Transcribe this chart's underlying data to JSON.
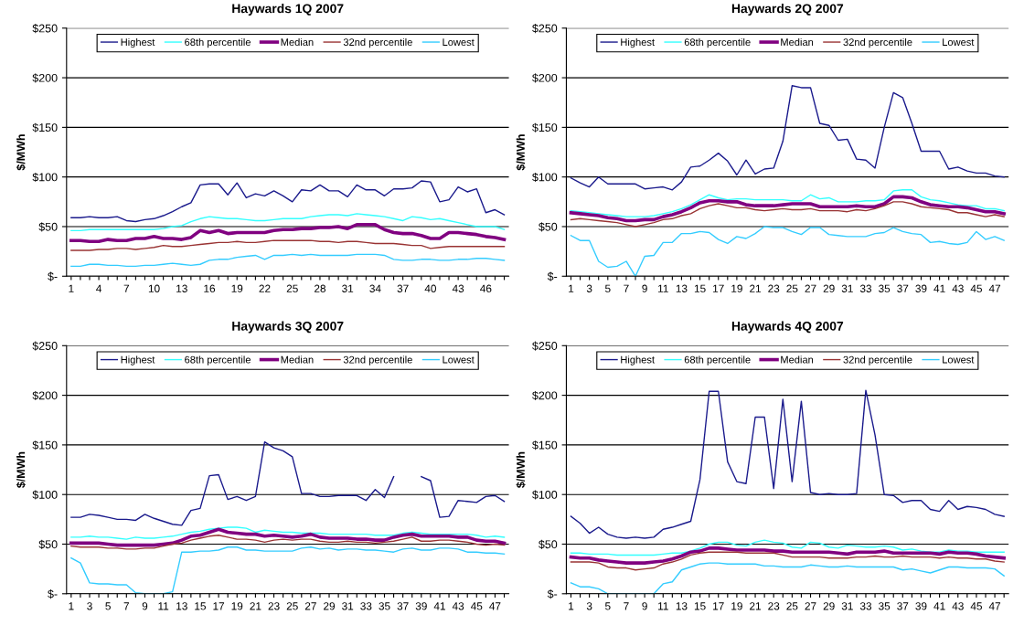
{
  "chart_data": [
    {
      "type": "line",
      "title": "Haywards 1Q 2007",
      "ylabel": "$/MWh",
      "categories": [
        "1",
        null,
        null,
        "4",
        null,
        null,
        "7",
        null,
        null,
        "10",
        null,
        null,
        "13",
        null,
        null,
        "16",
        null,
        null,
        "19",
        null,
        null,
        "22",
        null,
        null,
        "25",
        null,
        null,
        "28",
        null,
        null,
        "31",
        null,
        null,
        "34",
        null,
        null,
        "37",
        null,
        null,
        "40",
        null,
        null,
        "43",
        null,
        null,
        "46",
        null,
        null
      ],
      "ylim": [
        0,
        250
      ],
      "yticks": [
        {
          "value": 0,
          "label": "$-"
        },
        {
          "value": 50,
          "label": "$50"
        },
        {
          "value": 100,
          "label": "$100"
        },
        {
          "value": 150,
          "label": "$150"
        },
        {
          "value": 200,
          "label": "$200"
        },
        {
          "value": 250,
          "label": "$250"
        }
      ],
      "grid": "y",
      "legend": "top",
      "series": [
        {
          "name": "Highest",
          "color": "#1a1a8c",
          "values": [
            59,
            59,
            60,
            59,
            59,
            60,
            56,
            55,
            57,
            58,
            61,
            65,
            70,
            74,
            92,
            93,
            93,
            82,
            94,
            79,
            83,
            81,
            86,
            81,
            75,
            87,
            86,
            92,
            86,
            86,
            80,
            92,
            87,
            87,
            81,
            88,
            88,
            89,
            96,
            95,
            75,
            77,
            90,
            85,
            88,
            64,
            67,
            62
          ]
        },
        {
          "name": "68th percentile",
          "color": "#33ffff",
          "values": [
            46,
            46,
            47,
            47,
            47,
            47,
            47,
            47,
            47,
            47,
            48,
            50,
            51,
            55,
            58,
            60,
            59,
            58,
            58,
            57,
            56,
            56,
            57,
            58,
            58,
            58,
            60,
            61,
            62,
            62,
            61,
            63,
            62,
            61,
            60,
            58,
            56,
            60,
            59,
            57,
            58,
            56,
            54,
            52,
            50,
            50,
            50,
            47
          ]
        },
        {
          "name": "Median",
          "color": "#800080",
          "values": [
            36,
            36,
            35,
            35,
            37,
            36,
            36,
            38,
            38,
            40,
            38,
            38,
            37,
            39,
            46,
            44,
            46,
            43,
            44,
            44,
            44,
            44,
            46,
            47,
            47,
            48,
            48,
            49,
            49,
            50,
            48,
            52,
            52,
            52,
            47,
            44,
            43,
            43,
            41,
            38,
            38,
            44,
            44,
            43,
            42,
            40,
            39,
            37
          ]
        },
        {
          "name": "32nd percentile",
          "color": "#993333",
          "values": [
            26,
            26,
            26,
            27,
            27,
            28,
            28,
            27,
            28,
            29,
            31,
            30,
            30,
            31,
            32,
            33,
            34,
            34,
            35,
            34,
            34,
            35,
            36,
            36,
            36,
            36,
            36,
            35,
            35,
            34,
            35,
            35,
            34,
            33,
            33,
            33,
            32,
            31,
            31,
            28,
            29,
            30,
            30,
            30,
            30,
            30,
            30,
            30
          ]
        },
        {
          "name": "Lowest",
          "color": "#33ccff",
          "values": [
            10,
            10,
            12,
            12,
            11,
            11,
            10,
            10,
            11,
            11,
            12,
            13,
            12,
            11,
            12,
            16,
            17,
            17,
            19,
            20,
            21,
            17,
            21,
            21,
            22,
            21,
            22,
            21,
            21,
            21,
            21,
            22,
            22,
            22,
            21,
            17,
            16,
            16,
            17,
            17,
            16,
            16,
            17,
            17,
            18,
            18,
            17,
            16
          ]
        }
      ]
    },
    {
      "type": "line",
      "title": "Haywards 2Q 2007",
      "ylabel": "$/MWh",
      "categories": [
        "1",
        null,
        "3",
        null,
        "5",
        null,
        "7",
        null,
        "9",
        null,
        "11",
        null,
        "13",
        null,
        "15",
        null,
        "17",
        null,
        "19",
        null,
        "21",
        null,
        "23",
        null,
        "25",
        null,
        "27",
        null,
        "29",
        null,
        "31",
        null,
        "33",
        null,
        "35",
        null,
        "37",
        null,
        "39",
        null,
        "41",
        null,
        "43",
        null,
        "45",
        null,
        "47",
        null
      ],
      "ylim": [
        0,
        250
      ],
      "yticks": [
        {
          "value": 0,
          "label": "$-"
        },
        {
          "value": 50,
          "label": "$50"
        },
        {
          "value": 100,
          "label": "$100"
        },
        {
          "value": 150,
          "label": "$150"
        },
        {
          "value": 200,
          "label": "$200"
        },
        {
          "value": 250,
          "label": "$250"
        }
      ],
      "grid": "y",
      "legend": "top",
      "series": [
        {
          "name": "Highest",
          "color": "#1a1a8c",
          "values": [
            99,
            94,
            90,
            100,
            93,
            93,
            93,
            93,
            88,
            89,
            90,
            87,
            95,
            110,
            111,
            117,
            124,
            116,
            102,
            117,
            103,
            108,
            109,
            136,
            192,
            190,
            190,
            154,
            152,
            137,
            138,
            118,
            117,
            109,
            150,
            185,
            180,
            154,
            126,
            126,
            126,
            108,
            110,
            106,
            104,
            104,
            101,
            100
          ]
        },
        {
          "name": "68th percentile",
          "color": "#33ffff",
          "values": [
            66,
            65,
            64,
            63,
            62,
            61,
            60,
            60,
            60,
            61,
            63,
            65,
            68,
            72,
            77,
            82,
            79,
            77,
            78,
            78,
            77,
            77,
            77,
            77,
            76,
            76,
            82,
            78,
            79,
            75,
            75,
            75,
            76,
            76,
            77,
            86,
            87,
            87,
            80,
            77,
            76,
            74,
            72,
            71,
            71,
            68,
            68,
            66
          ]
        },
        {
          "name": "Median",
          "color": "#800080",
          "values": [
            64,
            63,
            62,
            61,
            59,
            58,
            56,
            56,
            57,
            57,
            60,
            62,
            65,
            69,
            74,
            76,
            76,
            75,
            75,
            72,
            71,
            71,
            71,
            72,
            73,
            73,
            73,
            70,
            70,
            70,
            70,
            71,
            70,
            70,
            73,
            80,
            80,
            79,
            75,
            72,
            71,
            70,
            70,
            69,
            67,
            65,
            65,
            63
          ]
        },
        {
          "name": "32nd percentile",
          "color": "#993333",
          "values": [
            57,
            58,
            57,
            56,
            55,
            54,
            52,
            50,
            52,
            54,
            57,
            58,
            61,
            63,
            68,
            71,
            73,
            71,
            69,
            69,
            67,
            66,
            67,
            68,
            67,
            67,
            68,
            66,
            66,
            66,
            65,
            67,
            66,
            68,
            71,
            75,
            75,
            73,
            70,
            69,
            68,
            67,
            64,
            64,
            62,
            60,
            62,
            60
          ]
        },
        {
          "name": "Lowest",
          "color": "#33ccff",
          "values": [
            41,
            36,
            36,
            15,
            9,
            10,
            15,
            0,
            20,
            21,
            34,
            34,
            43,
            43,
            45,
            44,
            37,
            33,
            40,
            38,
            43,
            50,
            49,
            49,
            45,
            42,
            49,
            49,
            42,
            41,
            40,
            40,
            40,
            43,
            44,
            49,
            45,
            43,
            42,
            34,
            35,
            33,
            32,
            34,
            45,
            37,
            40,
            36
          ]
        }
      ]
    },
    {
      "type": "line",
      "title": "Haywards 3Q 2007",
      "ylabel": "$/MWh",
      "categories": [
        "1",
        null,
        "3",
        null,
        "5",
        null,
        "7",
        null,
        "9",
        null,
        "11",
        null,
        "13",
        null,
        "15",
        null,
        "17",
        null,
        "19",
        null,
        "21",
        null,
        "23",
        null,
        "25",
        null,
        "27",
        null,
        "29",
        null,
        "31",
        null,
        "33",
        null,
        "35",
        null,
        "37",
        null,
        "39",
        null,
        "41",
        null,
        "43",
        null,
        "45",
        null,
        "47",
        null
      ],
      "ylim": [
        0,
        250
      ],
      "yticks": [
        {
          "value": 0,
          "label": "$-"
        },
        {
          "value": 50,
          "label": "$50"
        },
        {
          "value": 100,
          "label": "$100"
        },
        {
          "value": 150,
          "label": "$150"
        },
        {
          "value": 200,
          "label": "$200"
        },
        {
          "value": 250,
          "label": "$250"
        }
      ],
      "grid": "y",
      "legend": "top",
      "series": [
        {
          "name": "Highest",
          "color": "#1a1a8c",
          "values": [
            77,
            77,
            80,
            79,
            77,
            75,
            75,
            74,
            80,
            76,
            73,
            70,
            69,
            84,
            86,
            119,
            120,
            95,
            98,
            94,
            98,
            153,
            147,
            144,
            138,
            101,
            101,
            98,
            98,
            99,
            99,
            99,
            94,
            105,
            97,
            118,
            null,
            null,
            118,
            114,
            77,
            78,
            94,
            93,
            92,
            98,
            99,
            93
          ]
        },
        {
          "name": "68th percentile",
          "color": "#33ffff",
          "values": [
            57,
            57,
            58,
            57,
            57,
            56,
            55,
            57,
            56,
            56,
            57,
            58,
            60,
            62,
            63,
            65,
            66,
            67,
            67,
            66,
            62,
            64,
            63,
            62,
            62,
            61,
            61,
            61,
            60,
            60,
            60,
            60,
            60,
            59,
            59,
            59,
            61,
            62,
            61,
            60,
            60,
            60,
            60,
            60,
            59,
            57,
            58,
            57
          ]
        },
        {
          "name": "Median",
          "color": "#800080",
          "values": [
            51,
            51,
            51,
            51,
            50,
            49,
            49,
            49,
            49,
            49,
            50,
            51,
            54,
            58,
            59,
            62,
            65,
            62,
            61,
            60,
            60,
            58,
            59,
            58,
            57,
            58,
            60,
            57,
            56,
            56,
            56,
            55,
            55,
            54,
            54,
            57,
            59,
            60,
            58,
            58,
            58,
            58,
            57,
            57,
            54,
            53,
            53,
            51
          ]
        },
        {
          "name": "32nd percentile",
          "color": "#993333",
          "values": [
            48,
            47,
            47,
            47,
            46,
            46,
            45,
            45,
            46,
            46,
            48,
            50,
            51,
            54,
            56,
            58,
            59,
            57,
            55,
            55,
            54,
            52,
            54,
            55,
            54,
            55,
            55,
            53,
            52,
            52,
            53,
            52,
            52,
            51,
            52,
            53,
            55,
            57,
            53,
            53,
            54,
            54,
            53,
            52,
            50,
            49,
            50,
            49
          ]
        },
        {
          "name": "Lowest",
          "color": "#33ccff",
          "values": [
            36,
            31,
            11,
            10,
            10,
            9,
            9,
            1,
            0,
            0,
            0,
            2,
            42,
            42,
            43,
            43,
            44,
            47,
            47,
            44,
            44,
            43,
            43,
            43,
            43,
            46,
            47,
            45,
            46,
            44,
            45,
            45,
            44,
            44,
            43,
            42,
            45,
            46,
            44,
            44,
            46,
            46,
            45,
            42,
            42,
            41,
            41,
            40
          ]
        }
      ]
    },
    {
      "type": "line",
      "title": "Haywards 4Q 2007",
      "ylabel": "$/MWh",
      "categories": [
        "1",
        null,
        "3",
        null,
        "5",
        null,
        "7",
        null,
        "9",
        null,
        "11",
        null,
        "13",
        null,
        "15",
        null,
        "17",
        null,
        "19",
        null,
        "21",
        null,
        "23",
        null,
        "25",
        null,
        "27",
        null,
        "29",
        null,
        "31",
        null,
        "33",
        null,
        "35",
        null,
        "37",
        null,
        "39",
        null,
        "41",
        null,
        "43",
        null,
        "45",
        null,
        "47",
        null
      ],
      "ylim": [
        0,
        250
      ],
      "yticks": [
        {
          "value": 0,
          "label": "$-"
        },
        {
          "value": 50,
          "label": "$50"
        },
        {
          "value": 100,
          "label": "$100"
        },
        {
          "value": 150,
          "label": "$150"
        },
        {
          "value": 200,
          "label": "$200"
        },
        {
          "value": 250,
          "label": "$250"
        }
      ],
      "grid": "y",
      "legend": "top",
      "series": [
        {
          "name": "Highest",
          "color": "#1a1a8c",
          "values": [
            78,
            71,
            61,
            67,
            60,
            57,
            56,
            57,
            56,
            57,
            65,
            67,
            70,
            73,
            115,
            204,
            204,
            133,
            113,
            111,
            178,
            178,
            106,
            196,
            113,
            194,
            102,
            100,
            101,
            100,
            100,
            101,
            205,
            160,
            100,
            99,
            92,
            94,
            94,
            85,
            83,
            94,
            85,
            88,
            87,
            85,
            80,
            78
          ]
        },
        {
          "name": "68th percentile",
          "color": "#33ffff",
          "values": [
            41,
            41,
            40,
            40,
            40,
            39,
            39,
            39,
            39,
            39,
            40,
            41,
            41,
            43,
            46,
            50,
            52,
            52,
            49,
            48,
            52,
            54,
            52,
            51,
            47,
            46,
            52,
            51,
            47,
            46,
            49,
            48,
            47,
            47,
            48,
            47,
            44,
            45,
            43,
            42,
            42,
            44,
            43,
            43,
            42,
            42,
            42,
            42
          ]
        },
        {
          "name": "Median",
          "color": "#800080",
          "values": [
            37,
            36,
            36,
            34,
            33,
            32,
            31,
            31,
            31,
            32,
            33,
            35,
            38,
            42,
            43,
            46,
            46,
            45,
            44,
            44,
            44,
            44,
            43,
            43,
            42,
            42,
            42,
            42,
            42,
            41,
            40,
            42,
            42,
            42,
            43,
            41,
            41,
            41,
            41,
            41,
            40,
            42,
            41,
            41,
            40,
            38,
            37,
            36
          ]
        },
        {
          "name": "32nd percentile",
          "color": "#993333",
          "values": [
            32,
            32,
            32,
            31,
            27,
            26,
            26,
            24,
            25,
            26,
            30,
            32,
            35,
            39,
            41,
            42,
            42,
            42,
            42,
            41,
            41,
            41,
            41,
            39,
            37,
            37,
            37,
            37,
            36,
            36,
            36,
            37,
            37,
            38,
            37,
            37,
            38,
            37,
            37,
            37,
            36,
            37,
            36,
            36,
            35,
            35,
            33,
            32
          ]
        },
        {
          "name": "Lowest",
          "color": "#33ccff",
          "values": [
            11,
            7,
            7,
            5,
            0,
            0,
            0,
            0,
            0,
            0,
            10,
            12,
            24,
            27,
            30,
            31,
            31,
            30,
            30,
            30,
            30,
            28,
            28,
            27,
            27,
            27,
            29,
            28,
            27,
            27,
            28,
            27,
            27,
            27,
            27,
            27,
            24,
            25,
            23,
            21,
            24,
            27,
            27,
            26,
            26,
            26,
            25,
            18
          ]
        }
      ]
    }
  ]
}
